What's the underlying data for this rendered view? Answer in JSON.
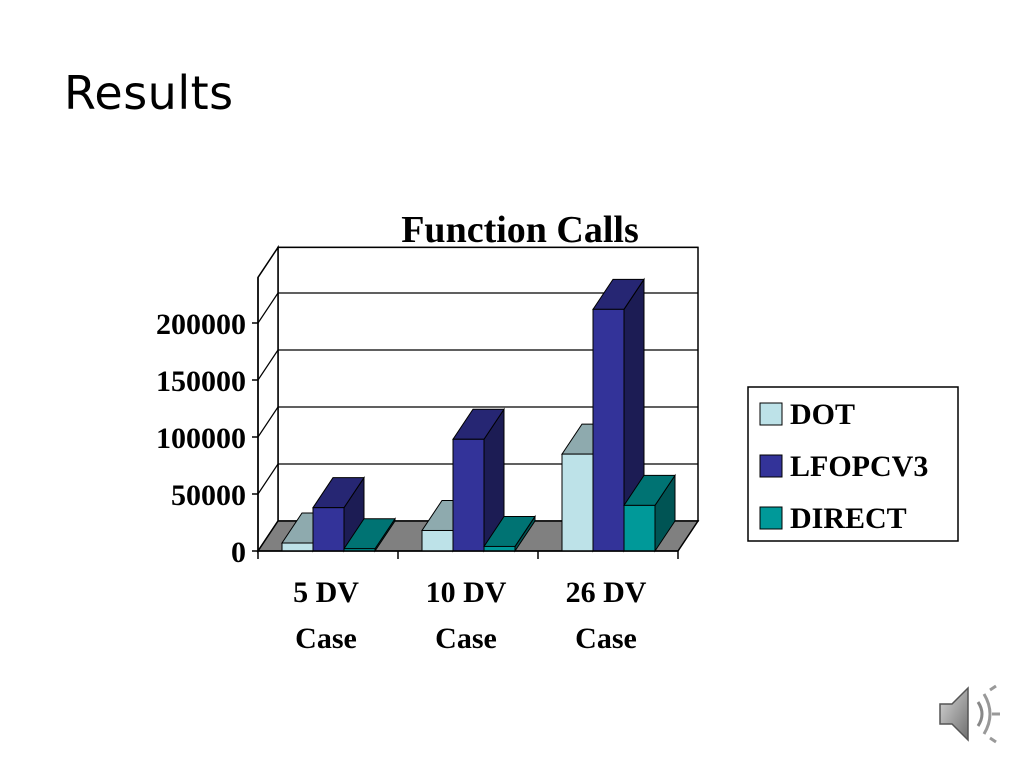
{
  "slide": {
    "title": "Results"
  },
  "chart_data": {
    "type": "bar",
    "title": "Function Calls",
    "categories": [
      "5 DV Case",
      "10 DV Case",
      "26 DV Case"
    ],
    "category_lines": [
      [
        "5 DV",
        "Case"
      ],
      [
        "10 DV",
        "Case"
      ],
      [
        "26 DV",
        "Case"
      ]
    ],
    "series": [
      {
        "name": "DOT",
        "values": [
          7000,
          18000,
          85000
        ],
        "color": "#bde2e8"
      },
      {
        "name": "LFOPCV3",
        "values": [
          38000,
          98000,
          212000
        ],
        "color": "#333399"
      },
      {
        "name": "DIRECT",
        "values": [
          2000,
          4000,
          40000
        ],
        "color": "#009999"
      }
    ],
    "yticks": [
      0,
      50000,
      100000,
      150000,
      200000
    ],
    "ylim": [
      0,
      240000
    ],
    "grid": true,
    "legend_position": "right",
    "three_d": true
  },
  "icons": {
    "audio": "speaker-icon"
  }
}
